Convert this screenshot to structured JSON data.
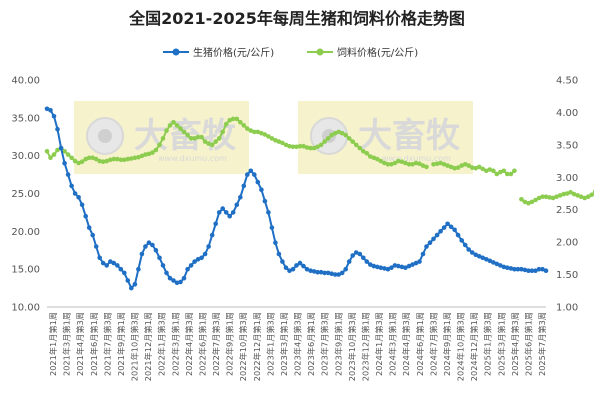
{
  "chart_data": {
    "type": "line",
    "title": "全国2021-2025年每周生猪和饲料价格走势图",
    "legend_position": "top-center",
    "grid": false,
    "watermark": {
      "text": "大畜牧",
      "url": "www.dxumu.com"
    },
    "axes": {
      "y_left": {
        "ylim": [
          10,
          40
        ],
        "ticks": [
          "10.00",
          "15.00",
          "20.00",
          "25.00",
          "30.00",
          "35.00",
          "40.00"
        ]
      },
      "y_right": {
        "ylim": [
          1.0,
          4.5
        ],
        "ticks": [
          "1.00",
          "1.50",
          "2.00",
          "2.50",
          "3.00",
          "3.50",
          "4.00",
          "4.50"
        ]
      },
      "x_tick_labels": [
        "2021年1月第1周",
        "2021年3月第1周",
        "2021年4月第3周",
        "2021年6月第1周",
        "2021年7月第3周",
        "2021年9月第1周",
        "2021年10月第3周",
        "2021年12月第1周",
        "2022年1月第3周",
        "2022年3月第1周",
        "2022年4月第3周",
        "2022年6月第1周",
        "2022年7月第3周",
        "2022年9月第1周",
        "2022年10月第3周",
        "2022年12月第1周",
        "2023年1月第3周",
        "2023年3月第1周",
        "2023年4月第3周",
        "2023年6月第1周",
        "2023年7月第3周",
        "2023年9月第1周",
        "2023年10月第3周",
        "2023年12月第1周",
        "2024年1月第3周",
        "2024年3月第1周",
        "2024年4月第3周",
        "2024年6月第1周",
        "2024年7月第3周",
        "2024年9月第1周",
        "2024年10月第3周",
        "2024年12月第1周",
        "2025年1月第3周",
        "2025年3月第1周",
        "2025年4月第3周",
        "2025年6月第1周",
        "2025年7月第3周"
      ]
    },
    "series": [
      {
        "name": "生猪价格(元/公斤)",
        "axis": "left",
        "color": "#1f6fc5",
        "y": [
          36.2,
          36.0,
          35.2,
          33.5,
          31.0,
          29.0,
          27.5,
          26.0,
          25.0,
          24.5,
          23.5,
          22.0,
          20.5,
          19.5,
          18.0,
          16.5,
          15.8,
          15.5,
          16.0,
          15.8,
          15.5,
          15.0,
          14.5,
          13.5,
          12.5,
          13.0,
          15.0,
          17.0,
          18.0,
          18.5,
          18.2,
          17.5,
          16.5,
          15.5,
          14.5,
          13.8,
          13.5,
          13.2,
          13.3,
          13.8,
          15.0,
          15.5,
          16.0,
          16.3,
          16.5,
          17.0,
          18.0,
          19.5,
          21.0,
          22.5,
          23.0,
          22.5,
          22.0,
          22.5,
          23.5,
          24.5,
          26.0,
          27.5,
          28.0,
          27.5,
          26.5,
          25.5,
          24.0,
          22.5,
          20.5,
          18.5,
          17.0,
          16.0,
          15.2,
          14.8,
          15.0,
          15.5,
          15.8,
          15.4,
          15.0,
          14.8,
          14.7,
          14.6,
          14.6,
          14.5,
          14.5,
          14.4,
          14.3,
          14.3,
          14.5,
          15.0,
          16.0,
          16.8,
          17.2,
          17.0,
          16.5,
          16.0,
          15.6,
          15.4,
          15.3,
          15.2,
          15.1,
          15.0,
          15.2,
          15.5,
          15.4,
          15.3,
          15.2,
          15.4,
          15.6,
          15.8,
          16.0,
          17.0,
          18.0,
          18.5,
          19.0,
          19.5,
          20.0,
          20.5,
          21.0,
          20.6,
          20.2,
          19.5,
          18.8,
          18.2,
          17.6,
          17.2,
          16.9,
          16.7,
          16.5,
          16.3,
          16.1,
          15.9,
          15.7,
          15.5,
          15.3,
          15.2,
          15.1,
          15.0,
          15.0,
          15.0,
          14.9,
          14.8,
          14.8,
          14.8,
          15.0,
          15.0,
          14.8
        ]
      },
      {
        "name": "饲料价格(元/公斤)",
        "axis": "right",
        "color": "#8ccc4e",
        "segments": [
          [
            3.4,
            3.3,
            3.35,
            3.42,
            3.45,
            3.4,
            3.35,
            3.3,
            3.25,
            3.22,
            3.24,
            3.28,
            3.3,
            3.3,
            3.28,
            3.25,
            3.24,
            3.25,
            3.27,
            3.28,
            3.28,
            3.27,
            3.27,
            3.28,
            3.29,
            3.3,
            3.31,
            3.33,
            3.35,
            3.36,
            3.38,
            3.42,
            3.5,
            3.6,
            3.72,
            3.8,
            3.85,
            3.8,
            3.75,
            3.7,
            3.65,
            3.6,
            3.6,
            3.62,
            3.62,
            3.55,
            3.52,
            3.5,
            3.55,
            3.6,
            3.7,
            3.82,
            3.88,
            3.9,
            3.9,
            3.85,
            3.8,
            3.75,
            3.72,
            3.7,
            3.7,
            3.68,
            3.66,
            3.63,
            3.6,
            3.57,
            3.55,
            3.53,
            3.5,
            3.48,
            3.47,
            3.47,
            3.48,
            3.48,
            3.46,
            3.45,
            3.45,
            3.47,
            3.5,
            3.55,
            3.6,
            3.65,
            3.68,
            3.7,
            3.68,
            3.65,
            3.6,
            3.55,
            3.5,
            3.45,
            3.4,
            3.37,
            3.32,
            3.3,
            3.28,
            3.25,
            3.22,
            3.2,
            3.2,
            3.22,
            3.25,
            3.24,
            3.22,
            3.2,
            3.2,
            3.22,
            3.21,
            3.18,
            3.16
          ],
          [
            3.2,
            3.21,
            3.22,
            3.2,
            3.18,
            3.16,
            3.14,
            3.15,
            3.18,
            3.2,
            3.18,
            3.15,
            3.14,
            3.16,
            3.13,
            3.1,
            3.12,
            3.1,
            3.05,
            3.08,
            3.1,
            3.05,
            3.05,
            3.1
          ],
          [
            2.66,
            2.62,
            2.6,
            2.62,
            2.65,
            2.68,
            2.7,
            2.7,
            2.69,
            2.68,
            2.7,
            2.72,
            2.74,
            2.75,
            2.77,
            2.74,
            2.72,
            2.7,
            2.68,
            2.7,
            2.73,
            2.78,
            2.8,
            2.75,
            2.72,
            2.7,
            2.7,
            2.72,
            2.74,
            2.74,
            2.73,
            2.73,
            2.74,
            2.75,
            2.74,
            2.72
          ]
        ]
      }
    ]
  }
}
